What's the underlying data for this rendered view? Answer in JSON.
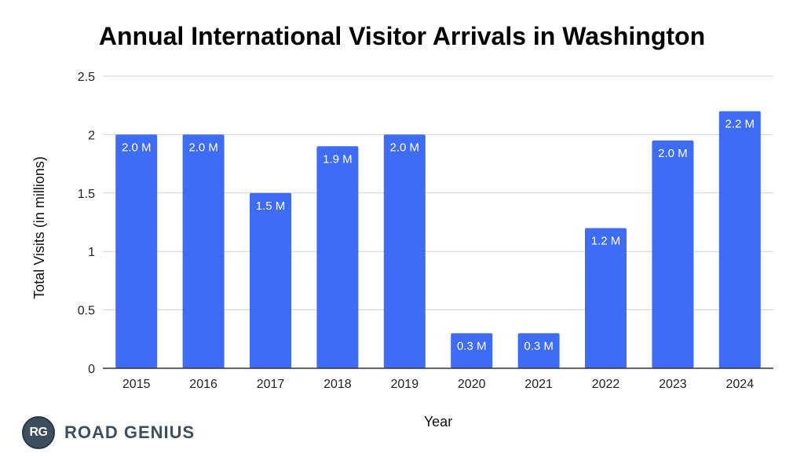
{
  "brand": {
    "initials": "RG",
    "name": "ROAD GENIUS"
  },
  "colors": {
    "bar": "#3e6cf4",
    "grid": "#d0d0d0",
    "axis": "#333333"
  },
  "chart_data": {
    "type": "bar",
    "title": "Annual International Visitor Arrivals in Washington",
    "xlabel": "Year",
    "ylabel": "Total Visits (in millions)",
    "categories": [
      "2015",
      "2016",
      "2017",
      "2018",
      "2019",
      "2020",
      "2021",
      "2022",
      "2023",
      "2024"
    ],
    "values": [
      2.0,
      2.0,
      1.5,
      1.9,
      2.0,
      0.3,
      0.3,
      1.2,
      1.95,
      2.2
    ],
    "data_labels": [
      "2.0 M",
      "2.0 M",
      "1.5 M",
      "1.9 M",
      "2.0 M",
      "0.3 M",
      "0.3 M",
      "1.2 M",
      "2.0 M",
      "2.2 M"
    ],
    "ylim": [
      0,
      2.5
    ],
    "yticks": [
      0,
      0.5,
      1,
      1.5,
      2,
      2.5
    ],
    "ytick_labels": [
      "0",
      "0.5",
      "1",
      "1.5",
      "2",
      "2.5"
    ],
    "grid": true,
    "legend": "none"
  }
}
